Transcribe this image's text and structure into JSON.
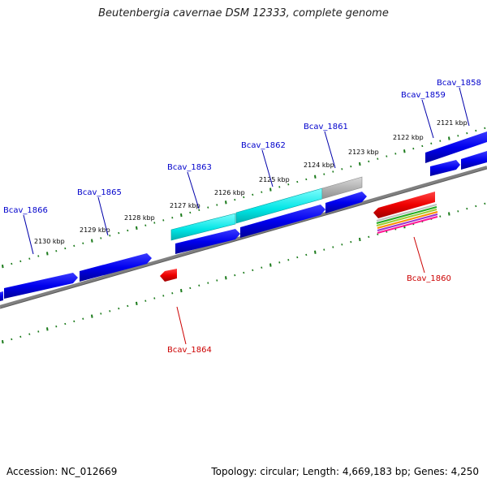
{
  "title": "Beutenbergia cavernae DSM 12333, complete genome",
  "footer": {
    "accession": "Accession: NC_012669",
    "summary": "Topology: circular; Length: 4,669,183 bp; Genes: 4,250"
  },
  "scale_labels": [
    "2121 kbp",
    "2122 kbp",
    "2123 kbp",
    "2124 kbp",
    "2125 kbp",
    "2126 kbp",
    "2127 kbp",
    "2128 kbp",
    "2129 kbp",
    "2130 kbp"
  ],
  "genes": [
    {
      "label": "Bcav_1858",
      "color": "#0000cc"
    },
    {
      "label": "Bcav_1859",
      "color": "#0000cc"
    },
    {
      "label": "Bcav_1861",
      "color": "#0000cc"
    },
    {
      "label": "Bcav_1862",
      "color": "#0000cc"
    },
    {
      "label": "Bcav_1863",
      "color": "#0000cc"
    },
    {
      "label": "Bcav_1865",
      "color": "#0000cc"
    },
    {
      "label": "Bcav_1866",
      "color": "#0000cc"
    },
    {
      "label": "Bcav_1860",
      "color": "#cc0000"
    },
    {
      "label": "Bcav_1864",
      "color": "#cc0000"
    }
  ],
  "colors": {
    "forward_cds": "#0000ee",
    "reverse_cds": "#ee0000",
    "cyan_feature": "#00e5e5",
    "grey_feature": "#b0b0b0",
    "backbone": "#808080",
    "tick": "#1a7a1a"
  }
}
